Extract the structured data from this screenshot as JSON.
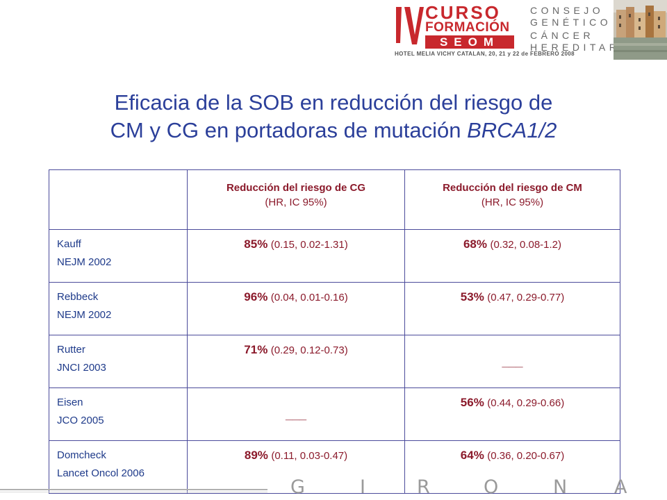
{
  "header": {
    "logo_roman": "IV",
    "logo_line1": "CURSO",
    "logo_line2": "FORMACIÓN",
    "logo_line3": "SEOM",
    "sponsor_lines": [
      "CONSEJO",
      "GENÉTICO",
      "CÁNCER",
      "HEREDITARIO"
    ],
    "venue": "HOTEL MELIA VICHY CATALAN, 20, 21 y 22 de FEBRERO 2008",
    "accent_color": "#c8282d"
  },
  "title": {
    "line1": "Eficacia de la SOB en reducción del riesgo de",
    "line2_prefix": "CM y CG en portadoras de mutación ",
    "line2_gene": "BRCA1/2",
    "color": "#2b3f9a"
  },
  "table": {
    "columns": [
      {
        "title": "",
        "subtitle": ""
      },
      {
        "title": "Reducción del riesgo de CG",
        "subtitle": "(HR, IC 95%)"
      },
      {
        "title": "Reducción del riesgo de CM",
        "subtitle": "(HR, IC 95%)"
      }
    ],
    "rows": [
      {
        "author": "Kauff",
        "source": "NEJM 2002",
        "cg": {
          "pct": "85%",
          "ci": "(0.15, 0.02-1.31)"
        },
        "cm": {
          "pct": "68%",
          "ci": "(0.32, 0.08-1.2)"
        }
      },
      {
        "author": "Rebbeck",
        "source": "NEJM 2002",
        "cg": {
          "pct": "96%",
          "ci": "(0.04, 0.01-0.16)"
        },
        "cm": {
          "pct": "53%",
          "ci": "(0.47, 0.29-0.77)"
        }
      },
      {
        "author": "Rutter",
        "source": "JNCI 2003",
        "cg": {
          "pct": "71%",
          "ci": "(0.29, 0.12-0.73)"
        },
        "cm": {
          "dash": "___"
        }
      },
      {
        "author": "Eisen",
        "source": "JCO 2005",
        "cg": {
          "dash": "___"
        },
        "cm": {
          "pct": "56%",
          "ci": "(0.44, 0.29-0.66)"
        }
      },
      {
        "author": "Domcheck",
        "source": "Lancet Oncol 2006",
        "cg": {
          "pct": "89%",
          "ci": "(0.11, 0.03-0.47)"
        },
        "cm": {
          "pct": "64%",
          "ci": "(0.36, 0.20-0.67)"
        }
      }
    ],
    "border_color": "#4a4a9a",
    "value_color": "#8b1a2b",
    "study_color": "#1e3a8a"
  },
  "footer": {
    "letters": [
      "G",
      "I",
      "R",
      "O",
      "N",
      "A"
    ]
  }
}
